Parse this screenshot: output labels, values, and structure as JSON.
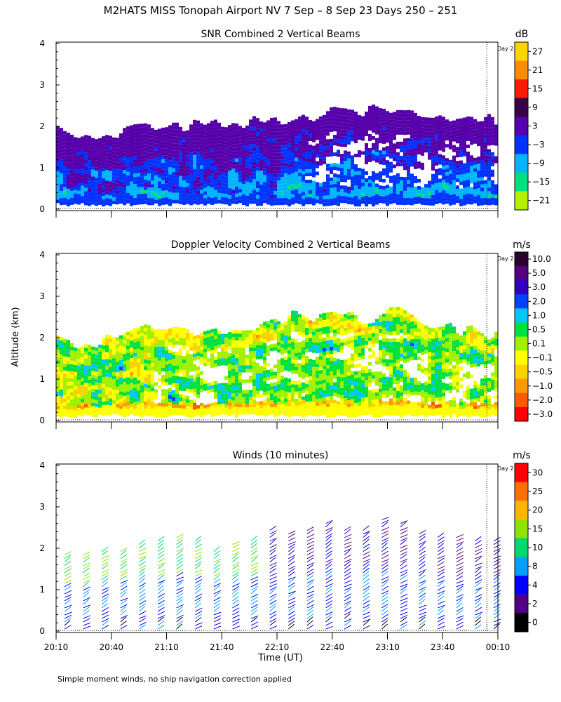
{
  "page": {
    "title": "M2HATS MISS Tonopah Airport NV   7 Sep –  8 Sep 23 Days 250 – 251",
    "ylabel": "Altitude (km)",
    "xlabel": "Time (UT)",
    "footnote": "Simple moment winds, no ship navigation correction applied",
    "day_marker_label": "Day 2"
  },
  "chart_data": [
    {
      "type": "heatmap",
      "title": "SNR Combined 2 Vertical Beams",
      "ylabel": "Altitude (km)",
      "ylim": [
        0,
        4
      ],
      "yticks": [
        0,
        1,
        2,
        3,
        4
      ],
      "xticks": [
        "20:10",
        "20:40",
        "21:10",
        "21:40",
        "22:10",
        "22:40",
        "23:10",
        "23:40",
        "00:10"
      ],
      "colorbar": {
        "unit": "dB",
        "labels": [
          "27",
          "21",
          "15",
          "9",
          "3",
          "−3",
          "−9",
          "−15",
          "−21"
        ],
        "colors": [
          "#ffd400",
          "#ff8c00",
          "#ff1a00",
          "#3a004a",
          "#5500aa",
          "#0033ff",
          "#00b4ff",
          "#00e080",
          "#b4f000"
        ]
      },
      "approx_layer_top_km": [
        1.9,
        1.8,
        1.9,
        2.0,
        2.0,
        2.1,
        2.1,
        2.2,
        2.3,
        2.4,
        2.5,
        2.3,
        2.2,
        2.1
      ]
    },
    {
      "type": "heatmap",
      "title": "Doppler Velocity Combined 2 Vertical Beams",
      "ylabel": "Altitude (km)",
      "ylim": [
        0,
        4
      ],
      "yticks": [
        0,
        1,
        2,
        3,
        4
      ],
      "xticks": [
        "20:10",
        "20:40",
        "21:10",
        "21:40",
        "22:10",
        "22:40",
        "23:10",
        "23:40",
        "00:10"
      ],
      "colorbar": {
        "unit": "m/s",
        "labels": [
          "10.0",
          "5.0",
          "3.0",
          "2.0",
          "1.0",
          "0.5",
          "0.1",
          "−0.1",
          "−0.5",
          "−1.0",
          "−2.0",
          "−3.0"
        ],
        "colors": [
          "#2a0030",
          "#500080",
          "#3000c0",
          "#0040ff",
          "#00c8ff",
          "#00e040",
          "#a0f000",
          "#ffff00",
          "#ffd000",
          "#ff9800",
          "#ff5a00",
          "#ff0000"
        ]
      },
      "approx_layer_top_km": [
        1.9,
        1.9,
        2.1,
        2.2,
        2.1,
        2.2,
        2.3,
        2.5,
        2.5,
        2.5,
        2.6,
        2.3,
        2.2,
        2.1
      ]
    },
    {
      "type": "scatter",
      "title": "Winds (10 minutes)",
      "ylabel": "Altitude (km)",
      "ylim": [
        0,
        4
      ],
      "yticks": [
        0,
        1,
        2,
        3,
        4
      ],
      "xticks": [
        "20:10",
        "20:40",
        "21:10",
        "21:40",
        "22:10",
        "22:40",
        "23:10",
        "23:40",
        "00:10"
      ],
      "colorbar": {
        "unit": "m/s",
        "labels": [
          "30",
          "25",
          "20",
          "15",
          "10",
          "8",
          "4",
          "2",
          "0"
        ],
        "colors": [
          "#ff0000",
          "#ff7000",
          "#ffb400",
          "#90e000",
          "#00d870",
          "#00a0ff",
          "#0000ff",
          "#500080",
          "#000000"
        ]
      },
      "approx_profile_top_km": [
        1.9,
        1.9,
        2.0,
        2.0,
        2.1,
        2.2,
        2.3,
        2.2,
        2.0,
        2.1,
        2.2,
        2.5,
        2.4,
        2.5,
        2.6,
        2.5,
        2.5,
        2.7,
        2.6,
        2.4,
        2.3,
        2.3,
        2.2,
        2.2
      ]
    }
  ]
}
